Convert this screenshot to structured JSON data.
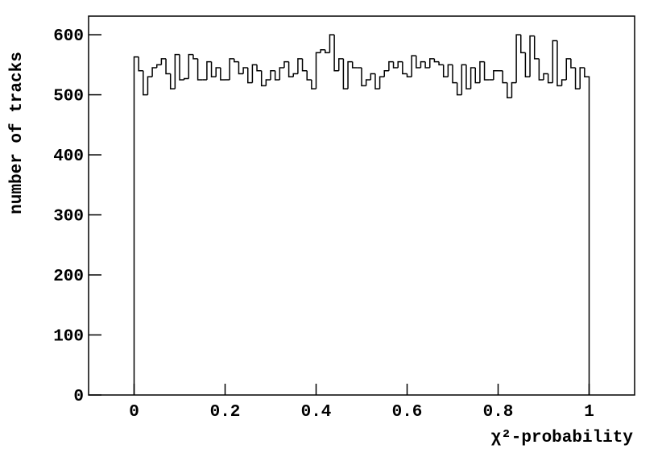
{
  "chart_data": {
    "type": "histogram",
    "x_label": "χ²-probability",
    "y_label": "number of tracks",
    "color": "#000000",
    "xlim": [
      -0.1,
      1.1
    ],
    "ylim": [
      0,
      631
    ],
    "xticks": [
      0,
      0.2,
      0.4,
      0.6,
      0.8,
      1
    ],
    "yticks": [
      0,
      100,
      200,
      300,
      400,
      500,
      600
    ],
    "bins": [
      0,
      0.01,
      0.02,
      0.03,
      0.04,
      0.05,
      0.06,
      0.07,
      0.08,
      0.09,
      0.1,
      0.11,
      0.12,
      0.13,
      0.14,
      0.15,
      0.16,
      0.17,
      0.18,
      0.19,
      0.2,
      0.21,
      0.22,
      0.23,
      0.24,
      0.25,
      0.26,
      0.27,
      0.28,
      0.29,
      0.3,
      0.31,
      0.32,
      0.33,
      0.34,
      0.35,
      0.36,
      0.37,
      0.38,
      0.39,
      0.4,
      0.41,
      0.42,
      0.43,
      0.44,
      0.45,
      0.46,
      0.47,
      0.48,
      0.49,
      0.5,
      0.51,
      0.52,
      0.53,
      0.54,
      0.55,
      0.56,
      0.57,
      0.58,
      0.59,
      0.6,
      0.61,
      0.62,
      0.63,
      0.64,
      0.65,
      0.66,
      0.67,
      0.68,
      0.69,
      0.7,
      0.71,
      0.72,
      0.73,
      0.74,
      0.75,
      0.76,
      0.77,
      0.78,
      0.79,
      0.8,
      0.81,
      0.82,
      0.83,
      0.84,
      0.85,
      0.86,
      0.87,
      0.88,
      0.89,
      0.9,
      0.91,
      0.92,
      0.93,
      0.94,
      0.95,
      0.96,
      0.97,
      0.98,
      0.99,
      1
    ],
    "values": [
      563,
      540,
      500,
      530,
      545,
      550,
      560,
      535,
      510,
      567,
      525,
      527,
      567,
      560,
      525,
      525,
      555,
      530,
      545,
      525,
      525,
      560,
      555,
      535,
      545,
      520,
      550,
      540,
      515,
      525,
      540,
      525,
      545,
      555,
      530,
      535,
      560,
      540,
      525,
      510,
      570,
      575,
      570,
      600,
      540,
      560,
      510,
      555,
      545,
      545,
      515,
      525,
      535,
      510,
      530,
      540,
      555,
      545,
      555,
      535,
      530,
      565,
      545,
      555,
      545,
      560,
      555,
      550,
      530,
      550,
      520,
      500,
      550,
      510,
      545,
      520,
      555,
      525,
      525,
      540,
      540,
      520,
      495,
      520,
      600,
      570,
      530,
      598,
      560,
      525,
      535,
      520,
      590,
      515,
      525,
      560,
      545,
      510,
      545,
      530
    ]
  }
}
